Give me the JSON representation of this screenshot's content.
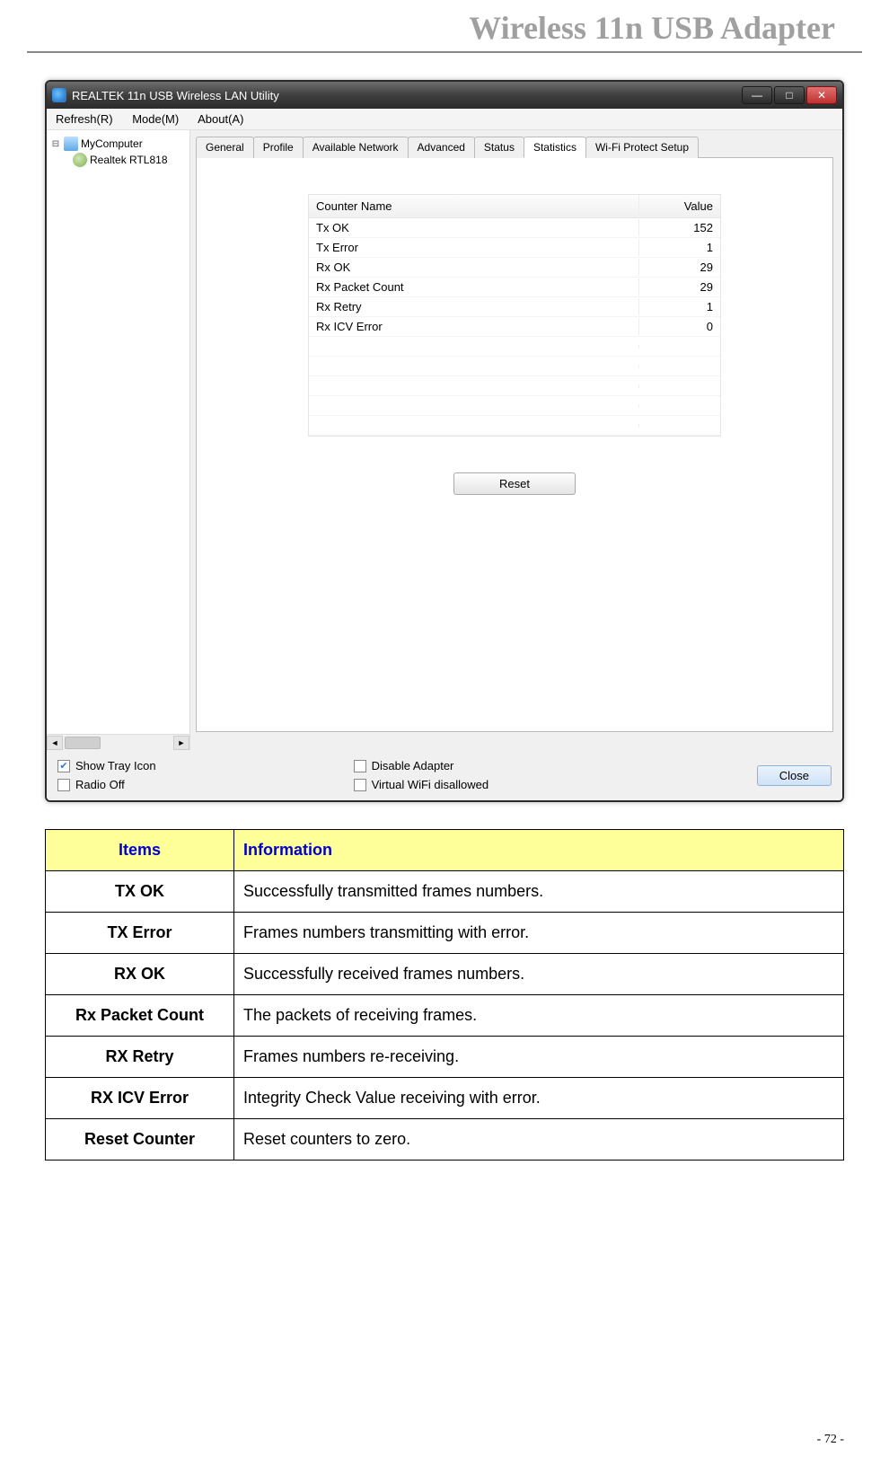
{
  "header": {
    "title": "Wireless 11n USB Adapter"
  },
  "window": {
    "title": "REALTEK 11n USB Wireless LAN Utility",
    "menu": [
      "Refresh(R)",
      "Mode(M)",
      "About(A)"
    ],
    "tree": {
      "root": "MyComputer",
      "child": "Realtek RTL818"
    },
    "tabs": [
      "General",
      "Profile",
      "Available Network",
      "Advanced",
      "Status",
      "Statistics",
      "Wi-Fi Protect Setup"
    ],
    "active_tab_index": 5,
    "stats": {
      "columns": [
        "Counter Name",
        "Value"
      ],
      "rows": [
        {
          "name": "Tx OK",
          "value": "152"
        },
        {
          "name": "Tx Error",
          "value": "1"
        },
        {
          "name": "Rx OK",
          "value": "29"
        },
        {
          "name": "Rx Packet Count",
          "value": "29"
        },
        {
          "name": "Rx Retry",
          "value": "1"
        },
        {
          "name": "Rx ICV Error",
          "value": "0"
        }
      ],
      "empty_rows": 5
    },
    "reset_button": "Reset",
    "bottom": {
      "left": [
        {
          "label": "Show Tray Icon",
          "checked": true
        },
        {
          "label": "Radio Off",
          "checked": false
        }
      ],
      "mid": [
        {
          "label": "Disable Adapter",
          "checked": false
        },
        {
          "label": "Virtual WiFi disallowed",
          "checked": false
        }
      ],
      "close_label": "Close"
    }
  },
  "defs": {
    "headers": [
      "Items",
      "Information"
    ],
    "rows": [
      {
        "item": "TX OK",
        "info": "Successfully transmitted frames numbers."
      },
      {
        "item": "TX Error",
        "info": "Frames numbers transmitting with error."
      },
      {
        "item": "RX OK",
        "info": "Successfully received frames numbers."
      },
      {
        "item": "Rx Packet Count",
        "info": "The packets of receiving frames."
      },
      {
        "item": "RX Retry",
        "info": "Frames numbers re-receiving."
      },
      {
        "item": "RX ICV Error",
        "info": "Integrity Check Value receiving with error."
      },
      {
        "item": "Reset Counter",
        "info": "Reset counters to zero."
      }
    ]
  },
  "page_number": "- 72 -"
}
